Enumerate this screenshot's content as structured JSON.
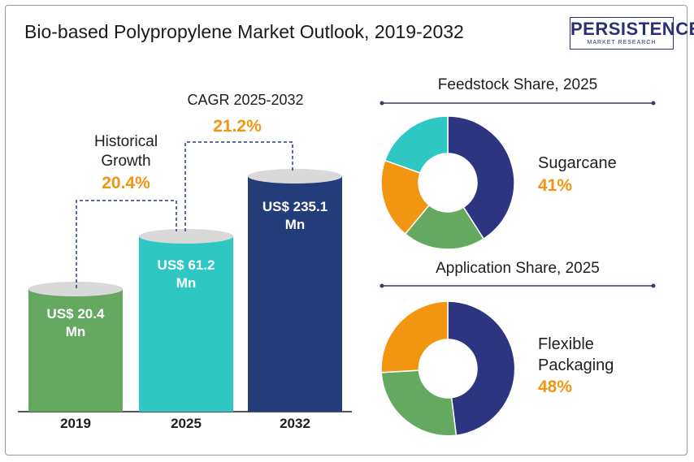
{
  "title": "Bio-based Polypropylene Market Outlook, 2019-2032",
  "logo": {
    "main": "PERSISTENCE",
    "sub": "MARKET RESEARCH"
  },
  "colors": {
    "green": "#65a860",
    "teal": "#2ec7c4",
    "navy": "#233c7a",
    "orange": "#f29612",
    "purple": "#2d3480"
  },
  "chart_data": [
    {
      "type": "bar",
      "categories": [
        "2019",
        "2025",
        "2032"
      ],
      "values": [
        20.4,
        61.2,
        235.1
      ],
      "value_labels": [
        "US$ 20.4 Mn",
        "US$ 61.2 Mn",
        "US$ 235.1 Mn"
      ],
      "annotations": {
        "historical_label": "Historical Growth",
        "historical_value": "20.4%",
        "cagr_label": "CAGR 2025-2032",
        "cagr_value": "21.2%"
      }
    },
    {
      "type": "pie",
      "title": "Feedstock Share, 2025",
      "highlight_label": "Sugarcane",
      "highlight_value": "41%",
      "values": [
        41,
        20,
        21,
        18
      ]
    },
    {
      "type": "pie",
      "title": "Application Share, 2025",
      "highlight_label": "Flexible Packaging",
      "highlight_value": "48%",
      "values": [
        48,
        25,
        27
      ]
    }
  ]
}
